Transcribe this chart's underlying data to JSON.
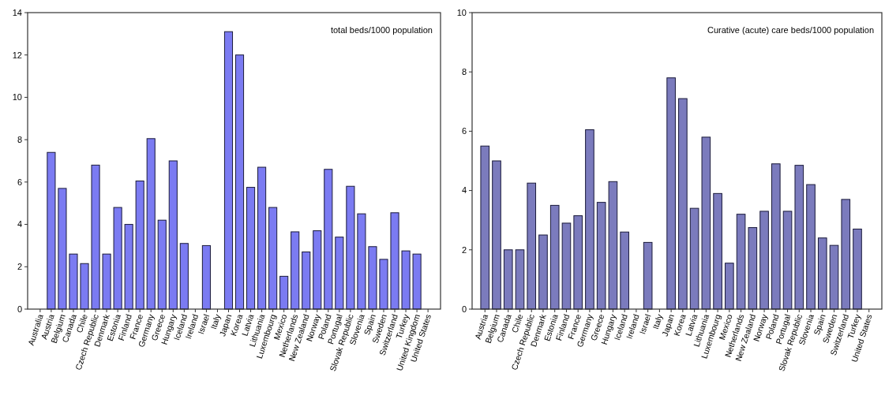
{
  "chart_data": [
    {
      "type": "bar",
      "title": "total beds/1000 population",
      "color": "#7b7bf2",
      "categories": [
        "Australia",
        "Austria",
        "Belgium",
        "Canada",
        "Chile",
        "Czech Republic",
        "Denmark",
        "Estonia",
        "Finland",
        "France",
        "Germany",
        "Greece",
        "Hungary",
        "Iceland",
        "Ireland",
        "Israel",
        "Italy",
        "Japan",
        "Korea",
        "Latvia",
        "Lithuania",
        "Luxembourg",
        "Mexico",
        "Netherlands",
        "New Zealand",
        "Norway",
        "Poland",
        "Portugal",
        "Slovak Republic",
        "Slovenia",
        "Spain",
        "Sweden",
        "Switzerland",
        "Turkey",
        "United Kingdom",
        "United States"
      ],
      "values": [
        null,
        7.4,
        5.7,
        2.6,
        2.15,
        6.8,
        2.6,
        4.8,
        4.0,
        6.05,
        8.05,
        4.2,
        7.0,
        3.1,
        null,
        3.0,
        null,
        13.1,
        12.0,
        5.75,
        6.7,
        4.8,
        1.55,
        3.65,
        2.7,
        3.7,
        6.6,
        3.4,
        5.8,
        4.5,
        2.95,
        2.35,
        4.55,
        2.75,
        2.6,
        null
      ],
      "ylim": [
        0,
        14
      ],
      "yticks": [
        0,
        2,
        4,
        6,
        8,
        10,
        12,
        14
      ],
      "grid": false
    },
    {
      "type": "bar",
      "title": "Curative (acute) care beds/1000 population",
      "color": "#7b7bbd",
      "categories": [
        "Austria",
        "Belgium",
        "Canada",
        "Chile",
        "Czech Republic",
        "Denmark",
        "Estonia",
        "Finland",
        "France",
        "Germany",
        "Greece",
        "Hungary",
        "Iceland",
        "Ireland",
        "Israel",
        "Italy",
        "Japan",
        "Korea",
        "Latvia",
        "Lithuania",
        "Luxembourg",
        "Mexico",
        "Netherlands",
        "New Zealand",
        "Norway",
        "Poland",
        "Portugal",
        "Slovak Republic",
        "Slovenia",
        "Spain",
        "Sweden",
        "Switzerland",
        "Turkey",
        "United States"
      ],
      "values": [
        5.5,
        5.0,
        2.0,
        2.0,
        4.25,
        2.5,
        3.5,
        2.9,
        3.15,
        6.05,
        3.6,
        4.3,
        2.6,
        null,
        2.25,
        null,
        7.8,
        7.1,
        3.4,
        5.8,
        3.9,
        1.55,
        3.2,
        2.75,
        3.3,
        4.9,
        3.3,
        4.85,
        4.2,
        2.4,
        2.15,
        3.7,
        2.7,
        null
      ],
      "ylim": [
        0,
        10
      ],
      "yticks": [
        0,
        2,
        4,
        6,
        8,
        10
      ],
      "grid": false
    }
  ]
}
